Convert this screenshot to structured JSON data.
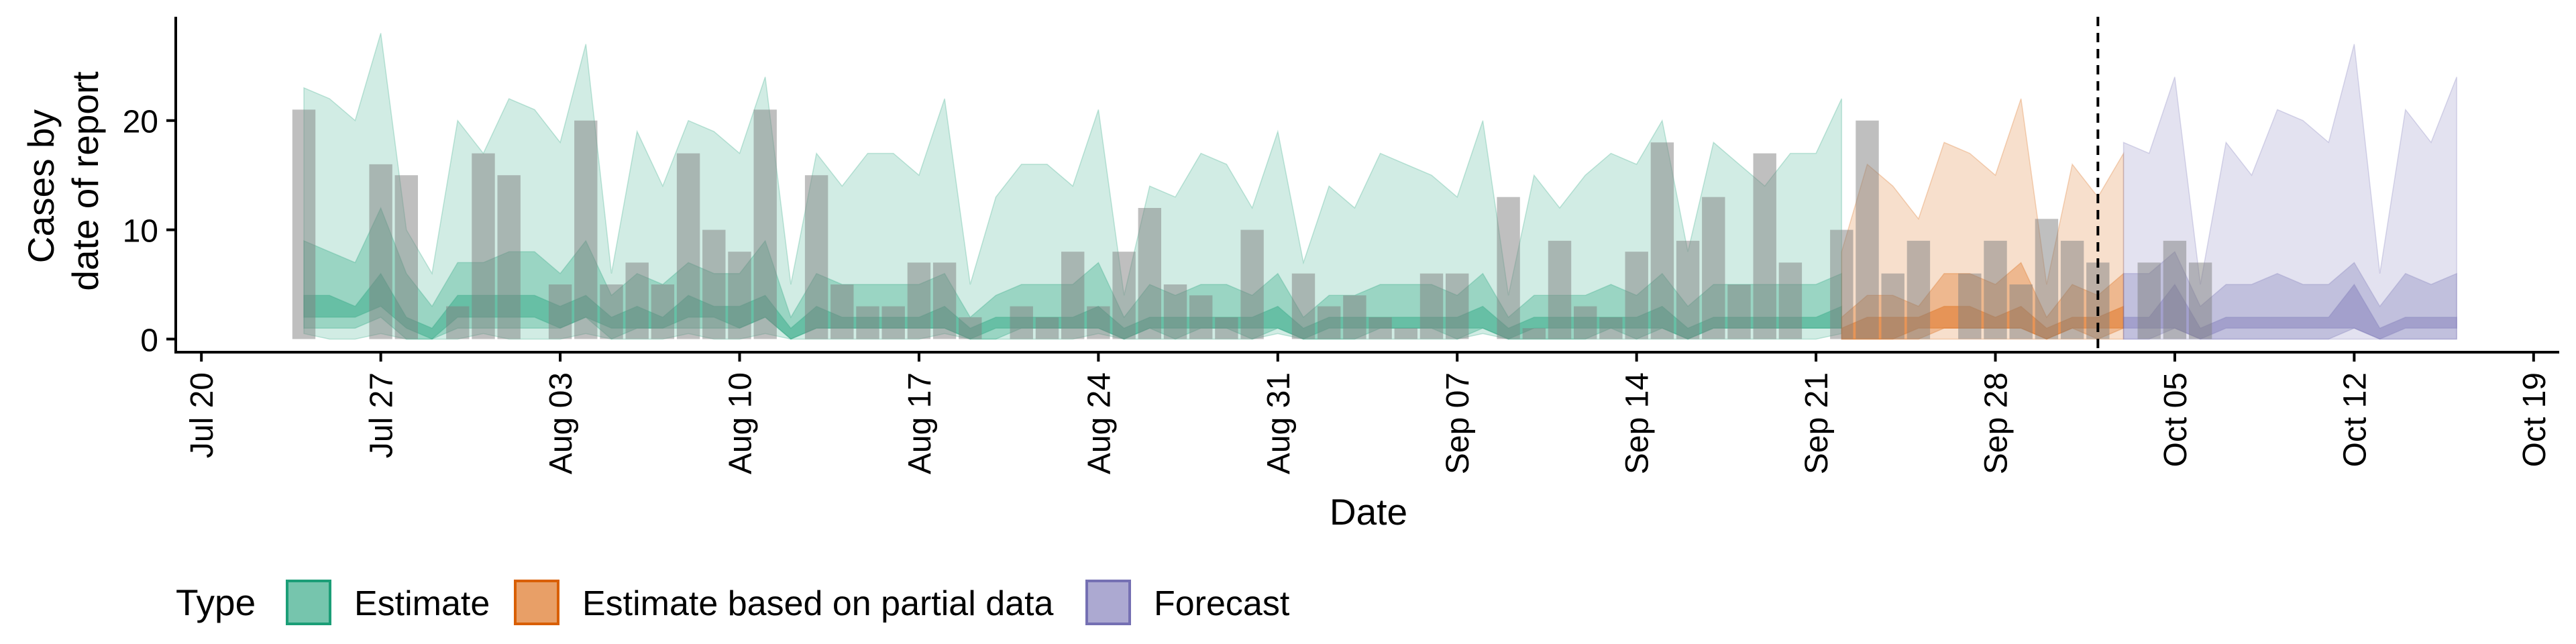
{
  "chart_data": {
    "type": "bar",
    "xlabel": "Date",
    "ylabel_lines": [
      "Cases by",
      "date of report"
    ],
    "x_start": "2020-07-20",
    "xlim": [
      "2020-07-19",
      "2020-10-20"
    ],
    "ylim": [
      -1.2,
      29.5
    ],
    "y_ticks": [
      0,
      10,
      20
    ],
    "x_ticks": [
      {
        "date": "2020-07-20",
        "label": "Jul 20"
      },
      {
        "date": "2020-07-27",
        "label": "Jul 27"
      },
      {
        "date": "2020-08-03",
        "label": "Aug 03"
      },
      {
        "date": "2020-08-10",
        "label": "Aug 10"
      },
      {
        "date": "2020-08-17",
        "label": "Aug 17"
      },
      {
        "date": "2020-08-24",
        "label": "Aug 24"
      },
      {
        "date": "2020-08-31",
        "label": "Aug 31"
      },
      {
        "date": "2020-09-07",
        "label": "Sep 07"
      },
      {
        "date": "2020-09-14",
        "label": "Sep 14"
      },
      {
        "date": "2020-09-21",
        "label": "Sep 21"
      },
      {
        "date": "2020-09-28",
        "label": "Sep 28"
      },
      {
        "date": "2020-10-05",
        "label": "Oct 05"
      },
      {
        "date": "2020-10-12",
        "label": "Oct 12"
      },
      {
        "date": "2020-10-19",
        "label": "Oct 19"
      }
    ],
    "reported_cases": {
      "start_date": "2020-07-24",
      "values": [
        21,
        0,
        0,
        16,
        15,
        0,
        3,
        17,
        15,
        0,
        5,
        20,
        5,
        7,
        5,
        17,
        10,
        8,
        21,
        0,
        15,
        5,
        3,
        3,
        7,
        7,
        2,
        0,
        3,
        2,
        8,
        3,
        8,
        12,
        5,
        4,
        2,
        10,
        0,
        6,
        3,
        4,
        2,
        1,
        6,
        6,
        0,
        13,
        1,
        9,
        3,
        2,
        8,
        18,
        9,
        13,
        5,
        17,
        7,
        0,
        10,
        20,
        6,
        9,
        0,
        6,
        9,
        5,
        11,
        9,
        7,
        0,
        7,
        9,
        7
      ]
    },
    "vertical_line_date": "2020-10-02",
    "types": [
      {
        "name": "Estimate",
        "color": "#1b9e77",
        "start_date": "2020-07-24",
        "upper90": [
          23,
          22,
          20,
          28,
          10,
          6,
          20,
          17,
          22,
          21,
          18,
          27,
          6,
          19,
          14,
          20,
          19,
          17,
          24,
          5,
          17,
          14,
          17,
          17,
          15,
          22,
          5,
          13,
          16,
          16,
          14,
          21,
          4,
          14,
          13,
          17,
          16,
          12,
          19,
          7,
          14,
          12,
          17,
          16,
          15,
          13,
          20,
          4,
          15,
          12,
          15,
          17,
          16,
          20,
          8,
          18,
          16,
          14,
          17,
          17,
          22
        ],
        "lower90": [
          0.5,
          0,
          0,
          0.5,
          0,
          0,
          0,
          0.5,
          0,
          0,
          0,
          0.5,
          0,
          0,
          0,
          0.5,
          0,
          0,
          0.5,
          0,
          0,
          0,
          0,
          0,
          0,
          0.5,
          0,
          0,
          0,
          0,
          0,
          0.5,
          0,
          0,
          0,
          0,
          0,
          0,
          0.5,
          0,
          0,
          0,
          0,
          0,
          0,
          0,
          0.5,
          0,
          0,
          0,
          0,
          0,
          0,
          0,
          0,
          0,
          0,
          0,
          0,
          0,
          0.5
        ],
        "upper50": [
          9,
          8,
          7,
          12,
          6,
          3,
          7,
          7,
          8,
          8,
          6,
          9,
          4,
          6,
          5,
          7,
          6,
          6,
          9,
          2,
          6,
          5,
          5,
          5,
          5,
          6,
          2,
          4,
          5,
          5,
          5,
          7,
          2,
          5,
          4,
          5,
          5,
          4,
          6,
          2,
          4,
          4,
          5,
          5,
          5,
          4,
          6,
          2,
          4,
          4,
          4,
          5,
          4,
          6,
          3,
          5,
          5,
          5,
          5,
          5,
          6
        ],
        "lower50": [
          1,
          1,
          1,
          2,
          0,
          0,
          1,
          1,
          1,
          1,
          1,
          2,
          0,
          1,
          1,
          1,
          1,
          1,
          2,
          0,
          1,
          1,
          1,
          1,
          1,
          1,
          0,
          0,
          1,
          1,
          1,
          1,
          0,
          1,
          0,
          1,
          1,
          0,
          1,
          0,
          0,
          0,
          1,
          1,
          1,
          0,
          1,
          0,
          0,
          0,
          0,
          1,
          0,
          1,
          0,
          1,
          1,
          1,
          1,
          1,
          1
        ],
        "upper20": [
          4,
          4,
          3,
          6,
          2,
          1,
          4,
          4,
          4,
          4,
          3,
          4,
          2,
          3,
          2,
          4,
          3,
          3,
          4,
          1,
          3,
          2,
          2,
          2,
          2,
          3,
          1,
          2,
          2,
          2,
          2,
          3,
          1,
          2,
          2,
          2,
          2,
          2,
          3,
          1,
          2,
          2,
          2,
          2,
          2,
          2,
          3,
          1,
          2,
          2,
          2,
          2,
          2,
          3,
          1,
          2,
          2,
          2,
          2,
          2,
          3
        ],
        "lower20": [
          2,
          2,
          2,
          3,
          1,
          0,
          2,
          2,
          2,
          2,
          1,
          2,
          1,
          1,
          1,
          2,
          2,
          1,
          2,
          0,
          1,
          1,
          1,
          1,
          1,
          1,
          0,
          1,
          1,
          1,
          1,
          1,
          0,
          1,
          1,
          1,
          1,
          1,
          1,
          0,
          1,
          1,
          1,
          1,
          1,
          1,
          1,
          0,
          1,
          1,
          1,
          1,
          1,
          1,
          0,
          1,
          1,
          1,
          1,
          1,
          1
        ]
      },
      {
        "name": "Estimate based on partial data",
        "color": "#d95f02",
        "start_date": "2020-09-22",
        "upper90": [
          8,
          16,
          14,
          11,
          18,
          17,
          15,
          22,
          5,
          16,
          13,
          17
        ],
        "lower90": [
          0,
          0,
          0,
          0,
          0,
          0,
          0,
          0,
          0,
          0,
          0,
          0
        ],
        "upper50": [
          2,
          4,
          4,
          3,
          6,
          6,
          5,
          7,
          2,
          5,
          4,
          6
        ],
        "lower50": [
          0,
          0,
          0,
          0,
          1,
          1,
          1,
          1,
          0,
          1,
          0,
          1
        ],
        "upper20": [
          1,
          2,
          2,
          2,
          3,
          3,
          2,
          3,
          1,
          2,
          2,
          3
        ],
        "lower20": [
          0,
          0,
          0,
          1,
          1,
          1,
          1,
          1,
          0,
          1,
          1,
          1
        ]
      },
      {
        "name": "Forecast",
        "color": "#7570b3",
        "start_date": "2020-10-03",
        "upper90": [
          18,
          17,
          24,
          5,
          18,
          15,
          21,
          20,
          18,
          27,
          6,
          21,
          18,
          24
        ],
        "lower90": [
          0,
          0,
          0,
          0,
          0,
          0,
          0,
          0,
          0,
          0,
          0,
          0,
          0,
          0
        ],
        "upper50": [
          6,
          6,
          8,
          3,
          5,
          5,
          6,
          5,
          5,
          7,
          3,
          6,
          5,
          6
        ],
        "lower50": [
          0,
          0,
          1,
          0,
          0,
          0,
          0,
          0,
          0,
          1,
          0,
          0,
          0,
          0
        ],
        "upper20": [
          2,
          2,
          5,
          1,
          2,
          2,
          2,
          2,
          2,
          5,
          1,
          2,
          2,
          2
        ],
        "lower20": [
          1,
          1,
          1,
          0,
          1,
          1,
          1,
          1,
          1,
          1,
          0,
          1,
          1,
          1
        ]
      }
    ],
    "legend": {
      "title": "Type",
      "position": "bottom",
      "entries": [
        "Estimate",
        "Estimate based on partial data",
        "Forecast"
      ]
    }
  }
}
